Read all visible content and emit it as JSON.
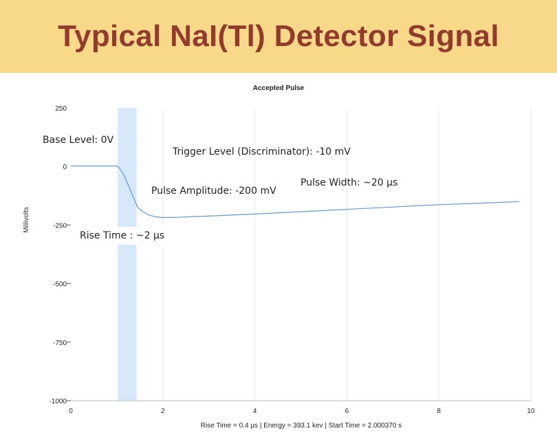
{
  "slide": {
    "title": "Typical NaI(Tl) Detector Signal",
    "band_color": "#f8d98a",
    "title_color": "#943a2c"
  },
  "annotations": {
    "base_level": "Base Level: 0V",
    "trigger_level": "Trigger Level (Discriminator): -10 mV",
    "pulse_amplitude": "Pulse Amplitude: -200 mV",
    "pulse_width": "Pulse Width: ~20 µs",
    "rise_time": "Rise Time : ~2 µs"
  },
  "chart_data": {
    "type": "line",
    "title": "Accepted Pulse",
    "ylabel": "Millivolts",
    "xlabel": "",
    "xlim": [
      0,
      10
    ],
    "ylim": [
      -1000,
      250
    ],
    "x_ticks": [
      0,
      2,
      4,
      6,
      8,
      10
    ],
    "y_ticks": [
      250,
      0,
      -250,
      -500,
      -750,
      -1000
    ],
    "grid": "vertical",
    "footer": "Rise Time = 0.4 µs | Energy = 393.1 kev | Start Time = 2.000370 s",
    "highlight_band": {
      "x_start": 1.02,
      "x_end": 1.43,
      "color": "#d8e8fb"
    },
    "series": [
      {
        "color": "#5b9bd5",
        "x": [
          0,
          1.0,
          1.05,
          1.15,
          1.25,
          1.35,
          1.45,
          1.55,
          1.7,
          1.85,
          2.0,
          2.3,
          3.0,
          4.0,
          5.0,
          6.0,
          7.0,
          8.0,
          9.0,
          9.75
        ],
        "y": [
          2,
          2,
          -5,
          -35,
          -80,
          -128,
          -173,
          -192,
          -208,
          -215,
          -218,
          -217,
          -212,
          -203,
          -193,
          -183,
          -173,
          -163,
          -156,
          -150
        ]
      }
    ]
  }
}
